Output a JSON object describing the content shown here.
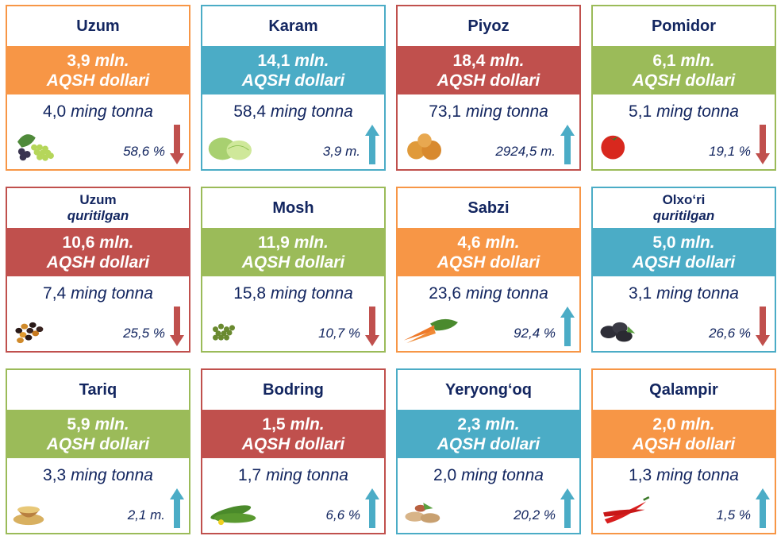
{
  "colors": {
    "orange": "#F79646",
    "teal": "#4BACC6",
    "red": "#C0504D",
    "green": "#9BBB59"
  },
  "currency": "AQSH dollari",
  "cards": [
    {
      "name": "Uzum",
      "sub": null,
      "value": "3,9",
      "unit": "mln.",
      "qty": "4,0",
      "qty_unit": "ming tonna",
      "change": "58,6 %",
      "dir": "down",
      "color": "orange",
      "icon": "grapes-icon"
    },
    {
      "name": "Karam",
      "sub": null,
      "value": "14,1",
      "unit": "mln.",
      "qty": "58,4",
      "qty_unit": "ming tonna",
      "change": "3,9 m.",
      "dir": "up",
      "color": "teal",
      "icon": "cabbage-icon"
    },
    {
      "name": "Piyoz",
      "sub": null,
      "value": "18,4",
      "unit": "mln.",
      "qty": "73,1",
      "qty_unit": "ming tonna",
      "change": "2924,5 m.",
      "dir": "up",
      "color": "red",
      "icon": "onion-icon"
    },
    {
      "name": "Pomidor",
      "sub": null,
      "value": "6,1",
      "unit": "mln.",
      "qty": "5,1",
      "qty_unit": "ming tonna",
      "change": "19,1 %",
      "dir": "down",
      "color": "green",
      "icon": "tomato-icon"
    },
    {
      "name": "Uzum",
      "sub": "quritilgan",
      "value": "10,6",
      "unit": "mln.",
      "qty": "7,4",
      "qty_unit": "ming tonna",
      "change": "25,5 %",
      "dir": "down",
      "color": "red",
      "icon": "raisins-icon"
    },
    {
      "name": "Mosh",
      "sub": null,
      "value": "11,9",
      "unit": "mln.",
      "qty": "15,8",
      "qty_unit": "ming tonna",
      "change": "10,7 %",
      "dir": "down",
      "color": "green",
      "icon": "mung-bean-icon"
    },
    {
      "name": "Sabzi",
      "sub": null,
      "value": "4,6",
      "unit": "mln.",
      "qty": "23,6",
      "qty_unit": "ming tonna",
      "change": "92,4 %",
      "dir": "up",
      "color": "orange",
      "icon": "carrot-icon"
    },
    {
      "name": "Olxo‘ri",
      "sub": "quritilgan",
      "value": "5,0",
      "unit": "mln.",
      "qty": "3,1",
      "qty_unit": "ming tonna",
      "change": "26,6 %",
      "dir": "down",
      "color": "teal",
      "icon": "prune-icon"
    },
    {
      "name": "Tariq",
      "sub": null,
      "value": "5,9",
      "unit": "mln.",
      "qty": "3,3",
      "qty_unit": "ming tonna",
      "change": "2,1 m.",
      "dir": "up",
      "color": "green",
      "icon": "millet-icon"
    },
    {
      "name": "Bodring",
      "sub": null,
      "value": "1,5",
      "unit": "mln.",
      "qty": "1,7",
      "qty_unit": "ming tonna",
      "change": "6,6 %",
      "dir": "up",
      "color": "red",
      "icon": "cucumber-icon"
    },
    {
      "name": "Yeryong‘oq",
      "sub": null,
      "value": "2,3",
      "unit": "mln.",
      "qty": "2,0",
      "qty_unit": "ming tonna",
      "change": "20,2 %",
      "dir": "up",
      "color": "teal",
      "icon": "peanut-icon"
    },
    {
      "name": "Qalampir",
      "sub": null,
      "value": "2,0",
      "unit": "mln.",
      "qty": "1,3",
      "qty_unit": "ming tonna",
      "change": "1,5 %",
      "dir": "up",
      "color": "orange",
      "icon": "chili-pepper-icon"
    }
  ]
}
